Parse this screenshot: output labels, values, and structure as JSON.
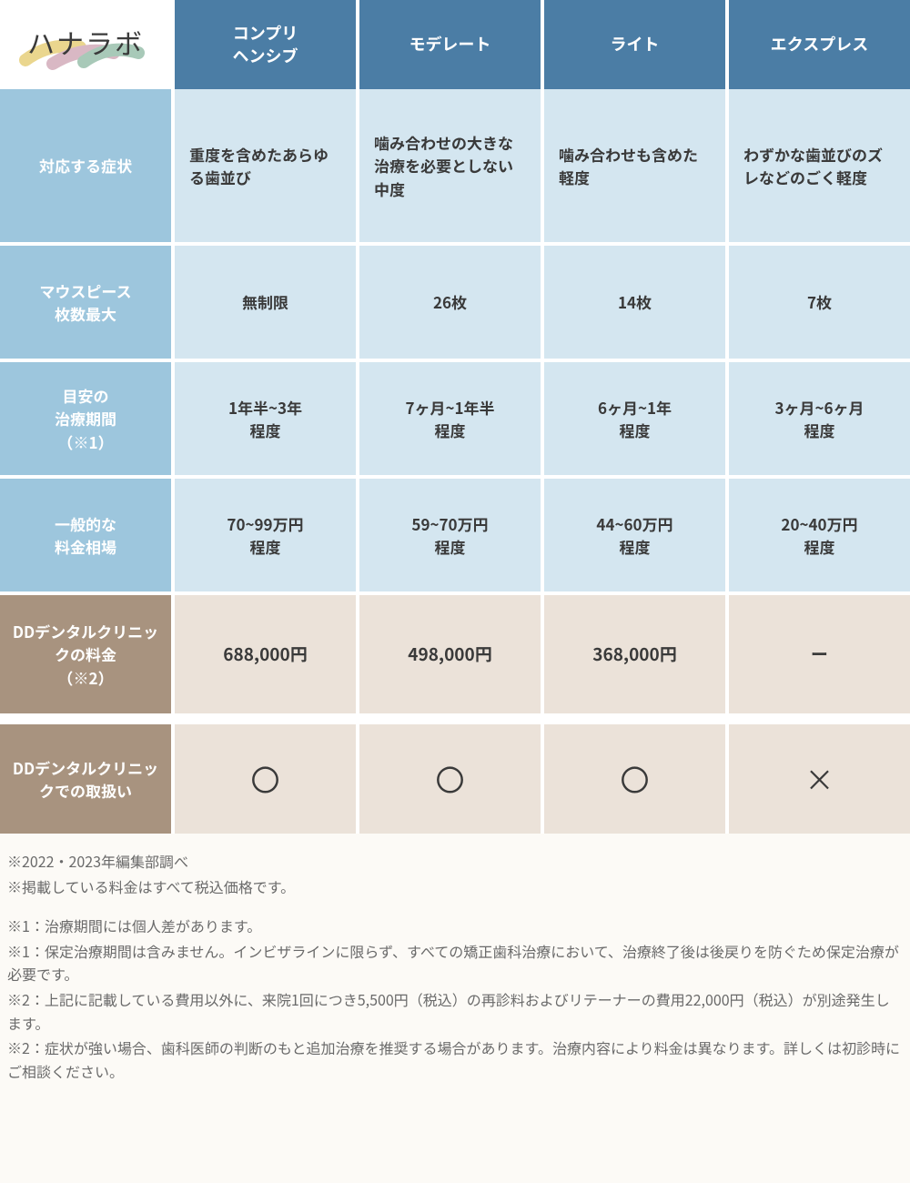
{
  "logo": "ハナラボ",
  "columns": [
    "コンプリ\nヘンシブ",
    "モデレート",
    "ライト",
    "エクスプレス"
  ],
  "rows": [
    {
      "header": "対応する症状",
      "style": "blue",
      "height": "tall",
      "cells": [
        "重度を含めたあらゆる歯並び",
        "噛み合わせの大きな治療を必要としない中度",
        "噛み合わせも含めた軽度",
        "わずかな歯並びのズレなどのごく軽度"
      ]
    },
    {
      "header": "マウスピース\n枚数最大",
      "style": "blue",
      "height": "med",
      "cells": [
        "無制限",
        "26枚",
        "14枚",
        "7枚"
      ]
    },
    {
      "header": "目安の\n治療期間\n（※1）",
      "style": "blue",
      "height": "med",
      "cells": [
        "1年半~3年\n程度",
        "7ヶ月~1年半\n程度",
        "6ヶ月~1年\n程度",
        "3ヶ月~6ヶ月\n程度"
      ]
    },
    {
      "header": "一般的な\n料金相場",
      "style": "blue",
      "height": "med",
      "cells": [
        "70~99万円\n程度",
        "59~70万円\n程度",
        "44~60万円\n程度",
        "20~40万円\n程度"
      ]
    },
    {
      "header": "DDデンタルクリニックの料金\n（※2）",
      "style": "brown",
      "height": "brown",
      "cells": [
        "688,000円",
        "498,000円",
        "368,000円",
        "ー"
      ]
    },
    {
      "header": "DDデンタルクリニックでの取扱い",
      "style": "brown",
      "height": "brown2",
      "cells": [
        "〇",
        "〇",
        "〇",
        "×"
      ],
      "symbol": true
    }
  ],
  "notes": [
    "※2022・2023年編集部調べ",
    "※掲載している料金はすべて税込価格です。"
  ],
  "notes2": [
    "※1：治療期間には個人差があります。",
    "※1：保定治療期間は含みません。インビザラインに限らず、すべての矯正歯科治療において、治療終了後は後戻りを防ぐため保定治療が必要です。",
    "※2：上記に記載している費用以外に、来院1回につき5,500円（税込）の再診料およびリテーナーの費用22,000円（税込）が別途発生します。",
    "※2：症状が強い場合、歯科医師の判断のもと追加治療を推奨する場合があります。治療内容により料金は異なります。詳しくは初診時にご相談ください。"
  ],
  "colors": {
    "header_bg": "#4b7da5",
    "row_header_blue": "#9dc6dd",
    "row_header_brown": "#a8937f",
    "data_blue": "#d4e6f0",
    "data_brown": "#ebe2d9",
    "text_dark": "#3a3a3a",
    "note_text": "#6a6a6a"
  }
}
